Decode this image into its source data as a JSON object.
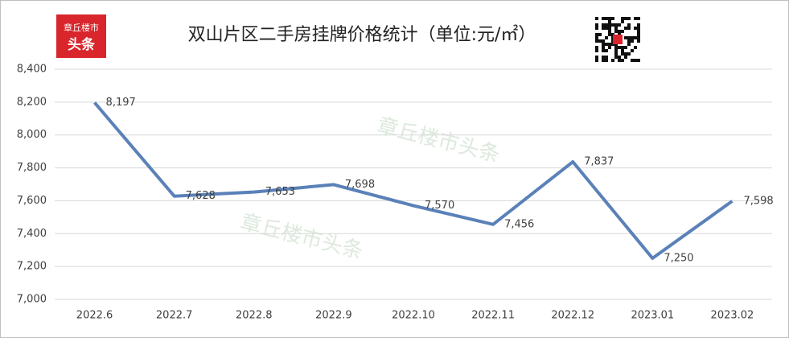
{
  "chart_data": {
    "type": "line",
    "title": "双山片区二手房挂牌价格统计（单位:元/㎡）",
    "logo": [
      "章丘楼市",
      "头条"
    ],
    "watermark": "章丘楼市头条",
    "categories": [
      "2022.6",
      "2022.7",
      "2022.8",
      "2022.9",
      "2022.10",
      "2022.11",
      "2022.12",
      "2023.01",
      "2023.02"
    ],
    "values": [
      8197,
      7628,
      7653,
      7698,
      7570,
      7456,
      7837,
      7250,
      7598
    ],
    "value_labels": [
      "8,197",
      "7,628",
      "7,653",
      "7,698",
      "7,570",
      "7,456",
      "7,837",
      "7,250",
      "7,598"
    ],
    "color": "#5a81b8",
    "ylim": [
      7000,
      8400
    ],
    "yticks": [
      {
        "value": 7000,
        "label": "7,000"
      },
      {
        "value": 7200,
        "label": "7,200"
      },
      {
        "value": 7400,
        "label": "7,400"
      },
      {
        "value": 7600,
        "label": "7,600"
      },
      {
        "value": 7800,
        "label": "7,800"
      },
      {
        "value": 8000,
        "label": "8,000"
      },
      {
        "value": 8200,
        "label": "8,200"
      },
      {
        "value": 8400,
        "label": "8,400"
      }
    ],
    "grid": true
  }
}
